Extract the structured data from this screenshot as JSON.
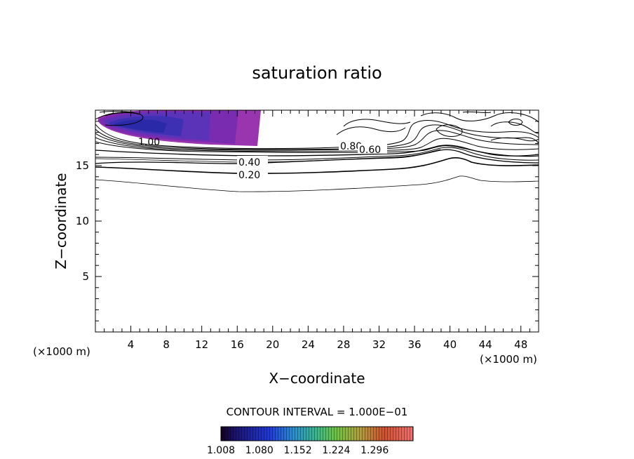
{
  "chart_data": {
    "type": "contour",
    "title": "saturation ratio",
    "xlabel": "X−coordinate",
    "ylabel": "Z−coordinate",
    "x_unit_left": "(×1000 m)",
    "x_unit_right": "(×1000 m)",
    "xlim": [
      0,
      50
    ],
    "ylim": [
      0,
      20
    ],
    "x_ticks": [
      4,
      8,
      12,
      16,
      20,
      24,
      28,
      32,
      36,
      40,
      44,
      48
    ],
    "y_ticks": [
      5,
      10,
      15
    ],
    "contour_labels": [
      {
        "text": "1.00",
        "x": 6.3,
        "y": 17.4
      },
      {
        "text": "0.80",
        "x": 29.0,
        "y": 16.7
      },
      {
        "text": "0.60",
        "x": 31.0,
        "y": 16.4
      },
      {
        "text": "0.40",
        "x": 17.5,
        "y": 15.3
      },
      {
        "text": "0.20",
        "x": 17.5,
        "y": 14.2
      }
    ],
    "contour_interval_text": "CONTOUR INTERVAL = 1.000E−01",
    "colorbar": {
      "min": 1.008,
      "max": 1.368,
      "tick_labels": [
        "1.008",
        "1.080",
        "1.152",
        "1.224",
        "1.296"
      ]
    },
    "colors": {
      "shade_deep": "#2a2aa8",
      "shade_mid": "#5a33b8",
      "shade_light": "#7a2cb0",
      "shade_edge": "#9a35b0"
    }
  }
}
